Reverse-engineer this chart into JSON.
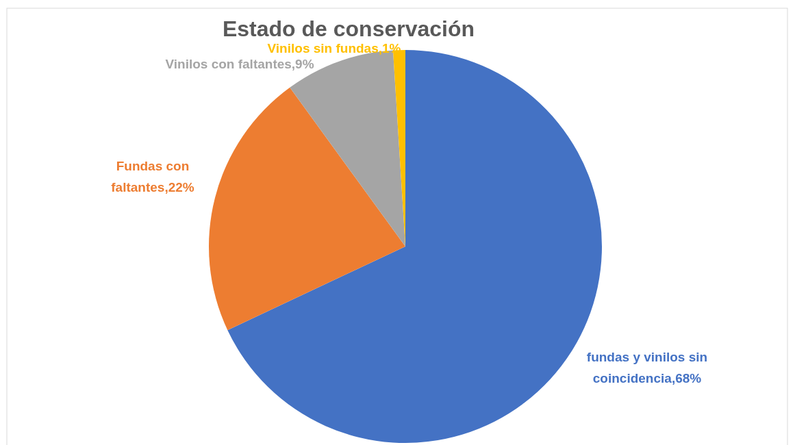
{
  "chart_data": {
    "type": "pie",
    "title": "Estado de conservación",
    "categories": [
      "fundas y vinilos sin coincidencia",
      "Fundas con faltantes",
      "Vinilos con faltantes",
      "Vinilos sin fundas"
    ],
    "values": [
      68,
      22,
      9,
      1
    ],
    "value_labels": [
      "68%",
      "22%",
      "9%",
      "1%"
    ],
    "colors": [
      "#4472c4",
      "#ed7d31",
      "#a5a5a5",
      "#ffc000"
    ]
  }
}
